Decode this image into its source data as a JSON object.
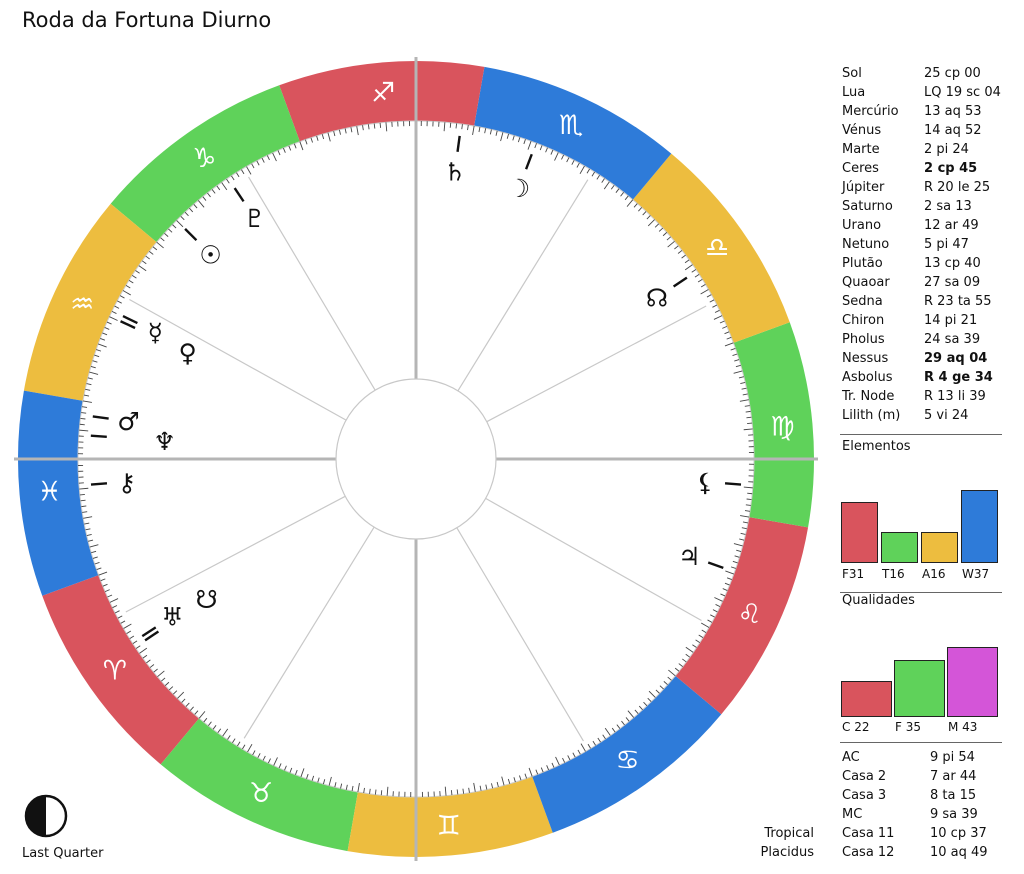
{
  "title": "Roda da Fortuna Diurno",
  "colors": {
    "fire": "#d9545d",
    "earth": "#5fd25a",
    "air": "#edbd3f",
    "water": "#2e7bd9",
    "mutable": "#d455d8"
  },
  "planets": [
    {
      "name": "Sol",
      "value": "25 cp 00",
      "bold": false
    },
    {
      "name": "Lua",
      "value": "LQ 19 sc 04",
      "bold": false
    },
    {
      "name": "Mercúrio",
      "value": "13 aq 53",
      "bold": false
    },
    {
      "name": "Vénus",
      "value": "14 aq 52",
      "bold": false
    },
    {
      "name": "Marte",
      "value": "2 pi 24",
      "bold": false
    },
    {
      "name": "Ceres",
      "value": "2 cp 45",
      "bold": true
    },
    {
      "name": "Júpiter",
      "value": "R 20 le 25",
      "bold": false
    },
    {
      "name": "Saturno",
      "value": "2 sa 13",
      "bold": false
    },
    {
      "name": "Urano",
      "value": "12 ar 49",
      "bold": false
    },
    {
      "name": "Netuno",
      "value": "5 pi 47",
      "bold": false
    },
    {
      "name": "Plutão",
      "value": "13 cp 40",
      "bold": false
    },
    {
      "name": "Quaoar",
      "value": "27 sa 09",
      "bold": false
    },
    {
      "name": "Sedna",
      "value": "R 23 ta 55",
      "bold": false
    },
    {
      "name": "Chiron",
      "value": "14 pi 21",
      "bold": false
    },
    {
      "name": "Pholus",
      "value": "24 sa 39",
      "bold": false
    },
    {
      "name": "Nessus",
      "value": "29 aq 04",
      "bold": true
    },
    {
      "name": "Asbolus",
      "value": "R 4 ge 34",
      "bold": true
    },
    {
      "name": "Tr. Node",
      "value": "R 13 li 39",
      "bold": false
    },
    {
      "name": "Lilith (m)",
      "value": "5 vi 24",
      "bold": false
    }
  ],
  "elements_label": "Elementos",
  "elements": [
    {
      "label": "F31",
      "value": 31,
      "color": "#d9545d"
    },
    {
      "label": "T16",
      "value": 16,
      "color": "#5fd25a"
    },
    {
      "label": "A16",
      "value": 16,
      "color": "#edbd3f"
    },
    {
      "label": "W37",
      "value": 37,
      "color": "#2e7bd9"
    }
  ],
  "qualities_label": "Qualidades",
  "qualities": [
    {
      "label": "C 22",
      "value": 22,
      "color": "#d9545d"
    },
    {
      "label": "F 35",
      "value": 35,
      "color": "#5fd25a"
    },
    {
      "label": "M 43",
      "value": 43,
      "color": "#d455d8"
    }
  ],
  "houses": [
    {
      "name": "AC",
      "value": "9 pi 54"
    },
    {
      "name": "Casa 2",
      "value": "7 ar 44"
    },
    {
      "name": "Casa 3",
      "value": "8 ta 15"
    },
    {
      "name": "MC",
      "value": "9 sa 39"
    },
    {
      "name": "Casa 11",
      "value": "10 cp 37"
    },
    {
      "name": "Casa 12",
      "value": "10 aq 49"
    }
  ],
  "zodiac": "Tropical",
  "house_system": "Placidus",
  "moon_phase": "Last Quarter",
  "wheel": {
    "ascendant": 339.9,
    "signs": [
      {
        "glyph": "♈︎",
        "element": "fire"
      },
      {
        "glyph": "♉︎",
        "element": "earth"
      },
      {
        "glyph": "♊︎",
        "element": "air"
      },
      {
        "glyph": "♋︎",
        "element": "water"
      },
      {
        "glyph": "♌︎",
        "element": "fire"
      },
      {
        "glyph": "♍︎",
        "element": "earth"
      },
      {
        "glyph": "♎︎",
        "element": "air"
      },
      {
        "glyph": "♏︎",
        "element": "water"
      },
      {
        "glyph": "♐︎",
        "element": "fire"
      },
      {
        "glyph": "♑︎",
        "element": "earth"
      },
      {
        "glyph": "♒︎",
        "element": "air"
      },
      {
        "glyph": "♓︎",
        "element": "water"
      }
    ],
    "house_cusps": [
      339.9,
      7.7,
      38.3,
      69.7,
      100.6,
      130.4,
      159.9,
      187.7,
      218.3,
      249.7,
      280.6,
      310.8
    ],
    "bodies": [
      {
        "glyph": "☉",
        "lon": 295.0
      },
      {
        "glyph": "☽",
        "lon": 229.1
      },
      {
        "glyph": "☿",
        "lon": 313.9
      },
      {
        "glyph": "♀",
        "lon": 314.9
      },
      {
        "glyph": "♂",
        "lon": 332.4
      },
      {
        "glyph": "♄",
        "lon": 242.2
      },
      {
        "glyph": "♃",
        "lon": 140.4
      },
      {
        "glyph": "♅",
        "lon": 12.8
      },
      {
        "glyph": "♆",
        "lon": 335.8
      },
      {
        "glyph": "♇",
        "lon": 283.7
      },
      {
        "glyph": "⚷",
        "lon": 344.4
      },
      {
        "glyph": "☊",
        "lon": 193.7
      },
      {
        "glyph": "☋",
        "lon": 13.7
      },
      {
        "glyph": "⚸",
        "lon": 155.4
      }
    ]
  }
}
